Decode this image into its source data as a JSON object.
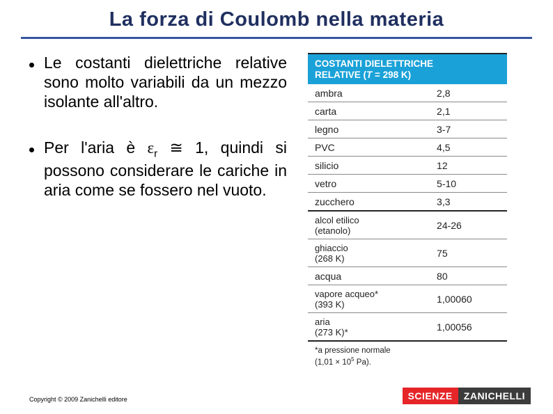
{
  "title": "La forza di Coulomb nella materia",
  "title_color": "#1f2f5f",
  "hr_color": "#35569e",
  "bullets": [
    "Le costanti dielettriche relative sono molto variabili da un mezzo isolante all'altro.",
    "Per l'aria è εr ≅ 1, quindi si possono considerare le cariche in aria come se fossero nel vuoto."
  ],
  "table": {
    "header_line1": "COSTANTI DIELETTRICHE",
    "header_line2_prefix": "RELATIVE (",
    "header_line2_var": "T",
    "header_line2_suffix": " = 298 K)",
    "header_bg": "#1aa1d8",
    "header_fg": "#ffffff",
    "rows": [
      {
        "name": "ambra",
        "val": "2,8"
      },
      {
        "name": "carta",
        "val": "2,1"
      },
      {
        "name": "legno",
        "val": "3-7"
      },
      {
        "name": "PVC",
        "val": "4,5"
      },
      {
        "name": "silicio",
        "val": "12"
      },
      {
        "name": "vetro",
        "val": "5-10"
      },
      {
        "name": "zucchero",
        "val": "3,3"
      },
      {
        "name": "alcol etilico\n(etanolo)",
        "val": "24-26"
      },
      {
        "name": "ghiaccio\n(268 K)",
        "val": "75"
      },
      {
        "name": "acqua",
        "val": "80"
      },
      {
        "name": "vapore acqueo*\n(393 K)",
        "val": "1,00060"
      },
      {
        "name": "aria\n(273 K)*",
        "val": "1,00056"
      }
    ],
    "border_color": "#888888",
    "font_size": 14
  },
  "footnote_line1": "*a pressione normale",
  "footnote_line2_prefix": "(1,01 × 10",
  "footnote_line2_exp": "5",
  "footnote_line2_suffix": " Pa).",
  "copyright": "Copyright © 2009 Zanichelli editore",
  "logo": {
    "left": "SCIENZE",
    "right": "ZANICHELLI",
    "left_bg": "#e52528",
    "right_bg": "#3c3c3c"
  }
}
